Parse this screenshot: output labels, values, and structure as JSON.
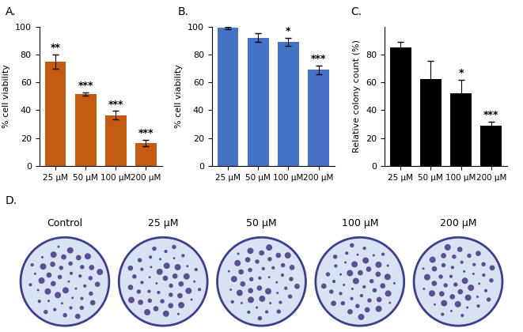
{
  "chart_data": [
    {
      "panel": "A.",
      "type": "bar",
      "categories": [
        "25 µM",
        "50 µM",
        "100 µM",
        "200 µM"
      ],
      "values": [
        75,
        51.5,
        36.5,
        16.5
      ],
      "errors": [
        5,
        1.2,
        3,
        2.3
      ],
      "significance": [
        "**",
        "***",
        "***",
        "***"
      ],
      "color": "#c55a11",
      "ylabel": "% cell viability",
      "ylim": [
        0,
        100
      ],
      "yticks": [
        0,
        20,
        40,
        60,
        80,
        100
      ]
    },
    {
      "panel": "B.",
      "type": "bar",
      "categories": [
        "25 µM",
        "50 µM",
        "100 µM",
        "200 µM"
      ],
      "values": [
        99,
        92,
        89,
        69
      ],
      "errors": [
        1,
        3,
        3,
        3
      ],
      "significance": [
        null,
        null,
        "*",
        "***"
      ],
      "color": "#4472c4",
      "ylabel": "% cell viability",
      "ylim": [
        0,
        100
      ],
      "yticks": [
        0,
        20,
        40,
        60,
        80,
        100
      ]
    },
    {
      "panel": "C.",
      "type": "bar",
      "categories": [
        "25 µM",
        "50 µM",
        "100 µM",
        "200 µM"
      ],
      "values": [
        85,
        62.5,
        52,
        29
      ],
      "errors": [
        4,
        13,
        10,
        3
      ],
      "significance": [
        null,
        null,
        "*",
        "***"
      ],
      "color": "#000000",
      "ylabel": "Relative colony count (%)",
      "ylim": [
        0,
        100
      ],
      "yticks": [
        0,
        20,
        40,
        60,
        80
      ]
    }
  ],
  "panel_d": {
    "panel": "D.",
    "type": "image",
    "labels": [
      "Control",
      "25 µM",
      "50 µM",
      "100 µM",
      "200 µM"
    ]
  }
}
